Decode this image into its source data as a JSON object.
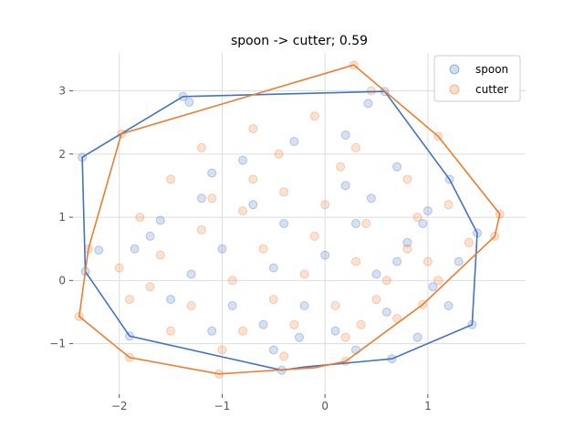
{
  "chart_data": {
    "type": "scatter",
    "title": "spoon -> cutter; 0.59",
    "xlabel": "",
    "ylabel": "",
    "xlim": [
      -2.45,
      1.95
    ],
    "ylim": [
      -1.8,
      3.6
    ],
    "xticks": [
      -2,
      -1,
      0,
      1
    ],
    "yticks": [
      -1,
      0,
      1,
      2,
      3
    ],
    "xtick_labels": [
      "−2",
      "−1",
      "0",
      "1"
    ],
    "ytick_labels": [
      "−1",
      "0",
      "1",
      "2",
      "3"
    ],
    "grid": true,
    "legend_position": "top-right",
    "series": [
      {
        "name": "spoon",
        "color": "#4472c4",
        "hull": [
          [
            -2.36,
            1.95
          ],
          [
            -1.38,
            2.91
          ],
          [
            0.58,
            2.99
          ],
          [
            1.21,
            1.6
          ],
          [
            1.48,
            0.75
          ],
          [
            1.43,
            -0.7
          ],
          [
            0.65,
            -1.24
          ],
          [
            -0.2,
            -1.37
          ],
          [
            -0.42,
            -1.42
          ],
          [
            -1.9,
            -0.88
          ],
          [
            -2.33,
            0.14
          ]
        ],
        "points": [
          [
            -2.36,
            1.95
          ],
          [
            -1.38,
            2.91
          ],
          [
            -1.32,
            2.82
          ],
          [
            0.58,
            2.99
          ],
          [
            0.42,
            2.8
          ],
          [
            1.21,
            1.6
          ],
          [
            1.48,
            0.75
          ],
          [
            1.43,
            -0.7
          ],
          [
            0.65,
            -1.24
          ],
          [
            -0.42,
            -1.42
          ],
          [
            -1.9,
            -0.88
          ],
          [
            -2.33,
            0.14
          ],
          [
            -2.2,
            0.48
          ],
          [
            -1.85,
            0.5
          ],
          [
            -1.6,
            0.95
          ],
          [
            -1.2,
            1.3
          ],
          [
            -0.8,
            1.9
          ],
          [
            -0.3,
            2.2
          ],
          [
            0.2,
            2.3
          ],
          [
            0.7,
            1.8
          ],
          [
            1.0,
            1.1
          ],
          [
            1.3,
            0.3
          ],
          [
            1.2,
            -0.4
          ],
          [
            0.9,
            -0.9
          ],
          [
            0.3,
            -1.1
          ],
          [
            -0.5,
            -1.1
          ],
          [
            -1.1,
            -0.8
          ],
          [
            -1.5,
            -0.3
          ],
          [
            -1.0,
            0.5
          ],
          [
            -0.5,
            0.2
          ],
          [
            0.0,
            0.4
          ],
          [
            0.5,
            0.1
          ],
          [
            -0.2,
            -0.4
          ],
          [
            0.3,
            0.9
          ],
          [
            -0.7,
            1.2
          ],
          [
            0.8,
            0.6
          ],
          [
            -1.3,
            0.1
          ],
          [
            0.1,
            -0.8
          ],
          [
            -0.9,
            -0.4
          ],
          [
            0.6,
            -0.5
          ],
          [
            1.05,
            -0.1
          ],
          [
            -1.7,
            0.7
          ],
          [
            0.2,
            1.5
          ],
          [
            -0.4,
            0.9
          ],
          [
            0.45,
            1.3
          ],
          [
            -1.1,
            1.7
          ],
          [
            0.95,
            0.9
          ],
          [
            -0.25,
            -0.9
          ],
          [
            0.7,
            0.3
          ],
          [
            -0.6,
            -0.7
          ]
        ]
      },
      {
        "name": "cutter",
        "color": "#ed7d31",
        "hull": [
          [
            -1.98,
            2.32
          ],
          [
            0.28,
            3.41
          ],
          [
            1.1,
            2.28
          ],
          [
            1.7,
            1.05
          ],
          [
            1.65,
            0.7
          ],
          [
            0.95,
            -0.38
          ],
          [
            0.2,
            -1.28
          ],
          [
            -0.1,
            -1.38
          ],
          [
            -1.03,
            -1.48
          ],
          [
            -1.9,
            -1.22
          ],
          [
            -2.39,
            -0.57
          ],
          [
            -2.3,
            0.5
          ]
        ],
        "points": [
          [
            -1.98,
            2.32
          ],
          [
            0.28,
            3.41
          ],
          [
            0.45,
            3.0
          ],
          [
            1.1,
            2.28
          ],
          [
            1.7,
            1.05
          ],
          [
            1.65,
            0.7
          ],
          [
            0.95,
            -0.38
          ],
          [
            0.2,
            -1.28
          ],
          [
            -1.03,
            -1.48
          ],
          [
            -1.9,
            -1.22
          ],
          [
            -2.39,
            -0.57
          ],
          [
            -2.3,
            0.5
          ],
          [
            -2.0,
            0.2
          ],
          [
            -1.8,
            1.0
          ],
          [
            -1.5,
            1.6
          ],
          [
            -1.2,
            2.1
          ],
          [
            -0.7,
            2.4
          ],
          [
            -0.1,
            2.6
          ],
          [
            0.3,
            2.1
          ],
          [
            0.8,
            1.6
          ],
          [
            1.2,
            1.2
          ],
          [
            1.4,
            0.6
          ],
          [
            1.1,
            0.0
          ],
          [
            0.7,
            -0.6
          ],
          [
            0.2,
            -0.9
          ],
          [
            -0.4,
            -1.2
          ],
          [
            -1.0,
            -1.1
          ],
          [
            -1.5,
            -0.8
          ],
          [
            -1.9,
            -0.3
          ],
          [
            -1.6,
            0.4
          ],
          [
            -1.2,
            0.8
          ],
          [
            -0.8,
            1.1
          ],
          [
            -0.4,
            1.4
          ],
          [
            0.0,
            1.2
          ],
          [
            0.4,
            0.9
          ],
          [
            0.8,
            0.5
          ],
          [
            -0.6,
            0.5
          ],
          [
            -0.2,
            0.1
          ],
          [
            0.3,
            0.3
          ],
          [
            -0.9,
            0.0
          ],
          [
            -0.5,
            -0.3
          ],
          [
            0.1,
            -0.4
          ],
          [
            0.6,
            0.0
          ],
          [
            -1.3,
            -0.4
          ],
          [
            -0.3,
            -0.7
          ],
          [
            0.5,
            -0.3
          ],
          [
            -0.1,
            0.7
          ],
          [
            -0.7,
            1.6
          ],
          [
            0.9,
            1.0
          ],
          [
            -1.1,
            1.3
          ],
          [
            0.15,
            1.8
          ],
          [
            -0.45,
            2.0
          ],
          [
            1.0,
            0.3
          ],
          [
            -1.7,
            -0.1
          ],
          [
            -0.8,
            -0.8
          ],
          [
            0.35,
            -0.7
          ]
        ]
      }
    ]
  }
}
